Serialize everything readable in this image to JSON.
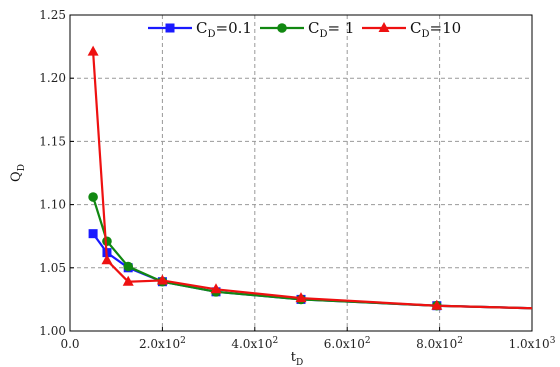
{
  "chart_data": {
    "type": "line",
    "xlabel": "t",
    "xlabel_sub": "D",
    "ylabel": "Q",
    "ylabel_sub": "D",
    "xlim": [
      0,
      1000
    ],
    "ylim": [
      1.0,
      1.25
    ],
    "grid": true,
    "legend_position": "top",
    "x_ticks": [
      {
        "value": 0,
        "label": "0.0"
      },
      {
        "value": 200,
        "label": "2.0x10",
        "exp": "2"
      },
      {
        "value": 400,
        "label": "4.0x10",
        "exp": "2"
      },
      {
        "value": 600,
        "label": "6.0x10",
        "exp": "2"
      },
      {
        "value": 800,
        "label": "8.0x10",
        "exp": "2"
      },
      {
        "value": 1000,
        "label": "1.0x10",
        "exp": "3"
      }
    ],
    "y_ticks": [
      {
        "value": 1.0,
        "label": "1.00"
      },
      {
        "value": 1.05,
        "label": "1.05"
      },
      {
        "value": 1.1,
        "label": "1.10"
      },
      {
        "value": 1.15,
        "label": "1.15"
      },
      {
        "value": 1.2,
        "label": "1.20"
      },
      {
        "value": 1.25,
        "label": "1.25"
      }
    ],
    "series": [
      {
        "name": "C_D=0.1",
        "name_main": "C",
        "name_sub": "D",
        "name_rest": "=0.1",
        "color": "#1a1aff",
        "marker": "square",
        "x": [
          50,
          80,
          126,
          200,
          316,
          500,
          794,
          1000
        ],
        "y": [
          1.077,
          1.062,
          1.05,
          1.039,
          1.031,
          1.025,
          1.02,
          1.018
        ]
      },
      {
        "name": "C_D= 1",
        "name_main": "C",
        "name_sub": "D",
        "name_rest": "= 1",
        "color": "#118811",
        "marker": "circle",
        "x": [
          50,
          80,
          126,
          200,
          316,
          500,
          794,
          1000
        ],
        "y": [
          1.106,
          1.071,
          1.051,
          1.039,
          1.031,
          1.025,
          1.02,
          1.018
        ]
      },
      {
        "name": "C_D=10",
        "name_main": "C",
        "name_sub": "D",
        "name_rest": "=10",
        "color": "#ee1111",
        "marker": "triangle",
        "x": [
          50,
          80,
          126,
          200,
          316,
          500,
          794,
          1000
        ],
        "y": [
          1.221,
          1.056,
          1.039,
          1.04,
          1.033,
          1.026,
          1.02,
          1.018
        ]
      }
    ]
  }
}
